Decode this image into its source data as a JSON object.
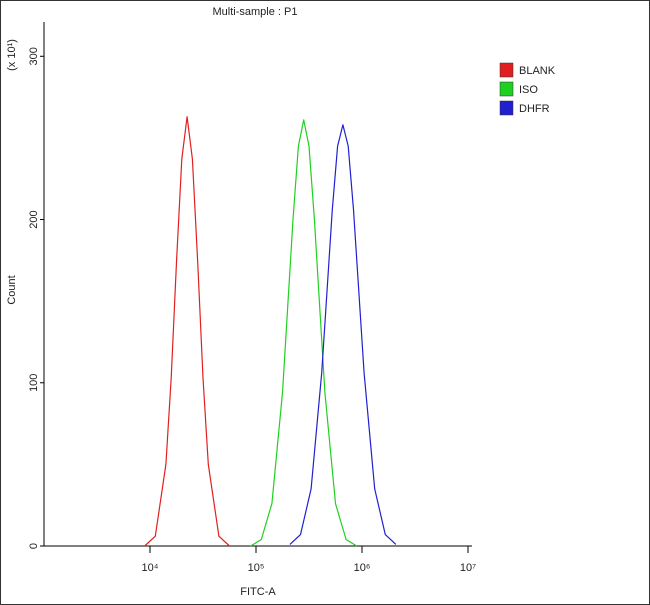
{
  "chart_data": {
    "type": "line",
    "title": "Multi-sample : P1",
    "x_label": "FITC-A",
    "y_label": "Count",
    "y_multiplier": "(x 10¹)",
    "x_log": true,
    "xlim": [
      1000,
      10000000
    ],
    "ylim": [
      0,
      321
    ],
    "xticks": [
      {
        "value": 10000,
        "label": "10⁴"
      },
      {
        "value": 100000,
        "label": "10⁵"
      },
      {
        "value": 1000000,
        "label": "10⁶"
      },
      {
        "value": 10000000,
        "label": "10⁷"
      }
    ],
    "yticks": [
      0,
      100,
      200,
      300
    ],
    "legend": "top-right",
    "series": [
      {
        "name": "BLANK",
        "color": "#e02020",
        "x": [
          8913,
          11220,
          14125,
          15849,
          17783,
          19953,
          22387,
          25119,
          28184,
          31623,
          35481,
          44668,
          56234
        ],
        "values": [
          0,
          6,
          50,
          103,
          174,
          237,
          263,
          237,
          174,
          103,
          50,
          6,
          0
        ]
      },
      {
        "name": "ISO",
        "color": "#20d020",
        "x": [
          89125,
          112202,
          141254,
          177828,
          223872,
          251189,
          281838,
          316228,
          354813,
          446684,
          562341,
          707946,
          891251
        ],
        "values": [
          0,
          4,
          26,
          94,
          201,
          245,
          261,
          245,
          201,
          94,
          26,
          4,
          0
        ]
      },
      {
        "name": "DHFR",
        "color": "#2020d0",
        "x": [
          208930,
          263027,
          331131,
          416869,
          524807,
          588844,
          660693,
          741310,
          831764,
          1047129,
          1318257,
          1659587,
          2089296
        ],
        "values": [
          1,
          7,
          35,
          106,
          206,
          245,
          258,
          245,
          206,
          106,
          35,
          7,
          1
        ]
      }
    ]
  }
}
